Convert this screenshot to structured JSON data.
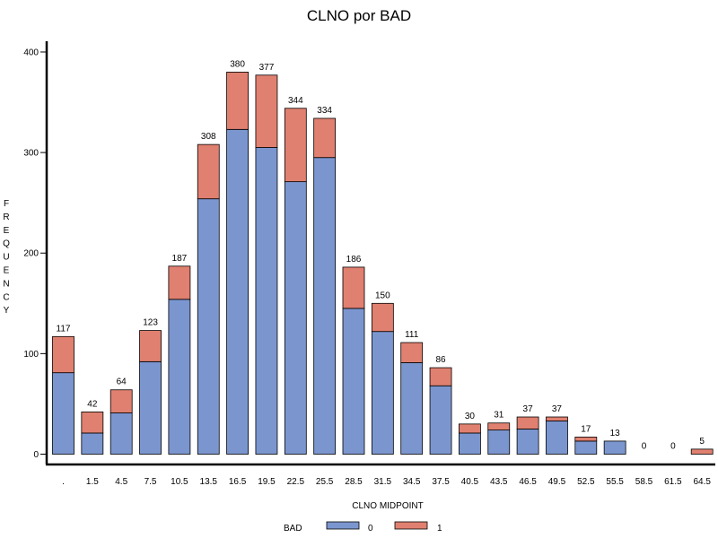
{
  "chart_data": {
    "type": "bar",
    "stacked": true,
    "title": "CLNO por BAD",
    "xlabel": "CLNO MIDPOINT",
    "ylabel": "FREQUENCY",
    "categories": [
      ".",
      "1.5",
      "4.5",
      "7.5",
      "10.5",
      "13.5",
      "16.5",
      "19.5",
      "22.5",
      "25.5",
      "28.5",
      "31.5",
      "34.5",
      "37.5",
      "40.5",
      "43.5",
      "46.5",
      "49.5",
      "52.5",
      "55.5",
      "58.5",
      "61.5",
      "64.5"
    ],
    "series": [
      {
        "name": "0",
        "color": "#7b96cf",
        "values": [
          81,
          21,
          41,
          92,
          154,
          254,
          323,
          305,
          271,
          295,
          145,
          122,
          91,
          68,
          21,
          24,
          25,
          33,
          13,
          13,
          0,
          0,
          0
        ]
      },
      {
        "name": "1",
        "color": "#e08070",
        "values": [
          36,
          21,
          23,
          31,
          33,
          54,
          57,
          72,
          73,
          39,
          41,
          28,
          20,
          18,
          9,
          7,
          12,
          4,
          4,
          0,
          0,
          0,
          5
        ]
      }
    ],
    "totals": [
      117,
      42,
      64,
      123,
      187,
      308,
      380,
      377,
      344,
      334,
      186,
      150,
      111,
      86,
      30,
      31,
      37,
      37,
      17,
      13,
      0,
      0,
      5
    ],
    "yticks": [
      0,
      100,
      200,
      300,
      400
    ],
    "ylim": [
      0,
      410
    ],
    "legend": {
      "title": "BAD",
      "placement": "bottom"
    },
    "grid": false
  }
}
